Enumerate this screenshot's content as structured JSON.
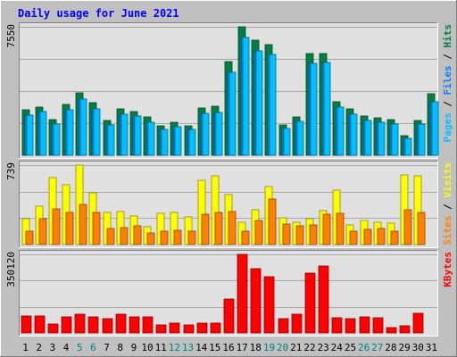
{
  "chart_data": {
    "type": "bar",
    "title": "Daily usage for June 2021",
    "categories": [
      "1",
      "2",
      "3",
      "4",
      "5",
      "6",
      "7",
      "8",
      "9",
      "10",
      "11",
      "12",
      "13",
      "14",
      "15",
      "16",
      "17",
      "18",
      "19",
      "20",
      "21",
      "22",
      "23",
      "24",
      "25",
      "26",
      "27",
      "28",
      "29",
      "30",
      "31"
    ],
    "weekend_days": [
      5,
      6,
      12,
      13,
      19,
      20,
      26,
      27
    ],
    "colors": {
      "title": "#0000ff",
      "background": "#c0c0c0",
      "plot_bg": "#e0e0e0",
      "weekend_label": "#008080",
      "weekday_label": "#000000",
      "hits": "#008040",
      "files": "#0080ff",
      "pages": "#00c0ff",
      "visits": "#ffff00",
      "sites": "#ff8000",
      "kbytes": "#ff0000"
    },
    "panels": [
      {
        "ymax_label": "7550",
        "ymax": 7550,
        "legend": [
          {
            "text": "Pages",
            "color": "#00c0ff"
          },
          {
            "text": " / ",
            "color": "#000000"
          },
          {
            "text": "Files",
            "color": "#0080ff"
          },
          {
            "text": " / ",
            "color": "#000000"
          },
          {
            "text": "Hits",
            "color": "#008040"
          }
        ],
        "series": [
          {
            "name": "Hits",
            "color": "#008040",
            "values": [
              2690,
              2820,
              2110,
              3010,
              3660,
              3080,
              2020,
              2720,
              2570,
              2240,
              1740,
              1930,
              1720,
              2800,
              2870,
              5530,
              7550,
              6740,
              6500,
              1800,
              2280,
              5960,
              5980,
              3140,
              2710,
              2330,
              2220,
              2120,
              1170,
              2070,
              3620
            ]
          },
          {
            "name": "Files",
            "color": "#0080ff",
            "values": [
              2380,
              2570,
              1850,
              2670,
              3290,
              2720,
              1770,
              2400,
              2300,
              1950,
              1530,
              1700,
              1520,
              2480,
              2540,
              4900,
              6900,
              6150,
              5900,
              1580,
              2010,
              5420,
              5430,
              2830,
              2400,
              2050,
              1950,
              1840,
              1000,
              1830,
              3170
            ]
          },
          {
            "name": "Pages",
            "color": "#00c0ff",
            "values": [
              2380,
              2570,
              1850,
              2670,
              3290,
              2720,
              1770,
              2400,
              2300,
              1950,
              1530,
              1700,
              1520,
              2480,
              2540,
              4900,
              6900,
              6150,
              5900,
              1580,
              2010,
              5420,
              5430,
              2830,
              2400,
              2050,
              1950,
              1840,
              1000,
              1830,
              3170
            ]
          }
        ]
      },
      {
        "ymax_label": "739",
        "ymax": 739,
        "legend": [
          {
            "text": "Sites",
            "color": "#ff8000"
          },
          {
            "text": " / ",
            "color": "#000000"
          },
          {
            "text": "Visits",
            "color": "#ffff00"
          }
        ],
        "series": [
          {
            "name": "Visits",
            "color": "#ffff00",
            "values": [
              238,
              354,
              621,
              557,
              739,
              485,
              301,
              310,
              265,
              166,
              287,
              295,
              256,
              601,
              638,
              466,
              211,
              325,
              541,
              245,
              205,
              241,
              317,
              510,
              181,
              224,
              210,
              198,
              644,
              637,
              0
            ]
          },
          {
            "name": "Sites",
            "color": "#ff8000",
            "values": [
              128,
              243,
              336,
              303,
              370,
              300,
              153,
              158,
              173,
              112,
              121,
              132,
              123,
              286,
              296,
              305,
              128,
              228,
              426,
              193,
              173,
              186,
              286,
              289,
              121,
              144,
              146,
              126,
              323,
              303,
              0
            ]
          }
        ]
      },
      {
        "ymax_label": "350120",
        "ymax": 350120,
        "legend": [
          {
            "text": "KBytes",
            "color": "#ff0000"
          }
        ],
        "series": [
          {
            "name": "KBytes",
            "color": "#ff0000",
            "values": [
              75000,
              74000,
              38000,
              71000,
              83000,
              70000,
              64000,
              85000,
              71000,
              70000,
              37000,
              45000,
              37000,
              43000,
              43000,
              152000,
              350120,
              285000,
              250000,
              64000,
              84000,
              268000,
              298000,
              69000,
              64000,
              70000,
              68000,
              25000,
              30000,
              88000,
              0
            ]
          }
        ]
      }
    ]
  }
}
